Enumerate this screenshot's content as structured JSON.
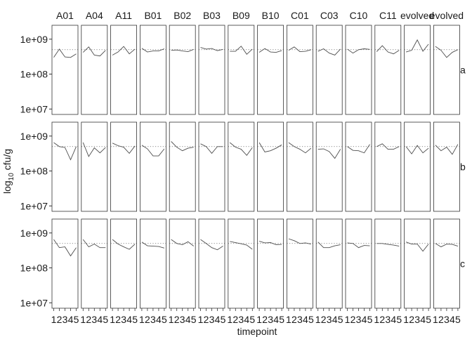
{
  "chart_data": {
    "type": "line",
    "facet_columns": [
      "A01",
      "A04",
      "A11",
      "B01",
      "B02",
      "B03",
      "B09",
      "B10",
      "C01",
      "C03",
      "C10",
      "C11",
      "evolved",
      "evolved"
    ],
    "facet_rows": [
      "a",
      "b",
      "c"
    ],
    "x": [
      1,
      2,
      3,
      4,
      5
    ],
    "xlabel": "timepoint",
    "ylabel_prefix": "log",
    "ylabel_sub": "10",
    "ylabel_suffix": " cfu/g",
    "y_scale": "log10",
    "ylim": [
      7000000,
      2500000000
    ],
    "yticks": [
      10000000,
      100000000,
      1000000000
    ],
    "ytick_labels": [
      "1e+07",
      "1e+08",
      "1e+09"
    ],
    "reference_line": 500000000,
    "reference_style": "dotted",
    "line_color": "#4d4d4d",
    "panel_border_color": "#333333",
    "values": {
      "a": [
        [
          300000000,
          520000000,
          310000000,
          300000000,
          380000000
        ],
        [
          420000000,
          600000000,
          350000000,
          330000000,
          480000000
        ],
        [
          350000000,
          430000000,
          620000000,
          380000000,
          520000000
        ],
        [
          550000000,
          430000000,
          460000000,
          460000000,
          530000000
        ],
        [
          480000000,
          490000000,
          460000000,
          440000000,
          510000000
        ],
        [
          580000000,
          520000000,
          540000000,
          470000000,
          510000000
        ],
        [
          450000000,
          450000000,
          630000000,
          370000000,
          520000000
        ],
        [
          420000000,
          540000000,
          430000000,
          420000000,
          470000000
        ],
        [
          480000000,
          600000000,
          440000000,
          450000000,
          500000000
        ],
        [
          450000000,
          530000000,
          400000000,
          350000000,
          520000000
        ],
        [
          520000000,
          400000000,
          500000000,
          530000000,
          510000000
        ],
        [
          440000000,
          650000000,
          430000000,
          380000000,
          480000000
        ],
        [
          430000000,
          480000000,
          950000000,
          450000000,
          720000000
        ],
        [
          620000000,
          480000000,
          300000000,
          420000000,
          500000000
        ]
      ],
      "b": [
        [
          650000000,
          500000000,
          470000000,
          210000000,
          500000000
        ],
        [
          650000000,
          260000000,
          460000000,
          330000000,
          470000000
        ],
        [
          630000000,
          530000000,
          480000000,
          320000000,
          520000000
        ],
        [
          550000000,
          430000000,
          270000000,
          270000000,
          430000000
        ],
        [
          700000000,
          480000000,
          380000000,
          450000000,
          480000000
        ],
        [
          600000000,
          500000000,
          320000000,
          500000000,
          500000000
        ],
        [
          650000000,
          480000000,
          420000000,
          280000000,
          470000000
        ],
        [
          650000000,
          350000000,
          380000000,
          450000000,
          560000000
        ],
        [
          650000000,
          500000000,
          420000000,
          330000000,
          450000000
        ],
        [
          420000000,
          430000000,
          360000000,
          230000000,
          420000000
        ],
        [
          500000000,
          390000000,
          380000000,
          330000000,
          580000000
        ],
        [
          500000000,
          600000000,
          420000000,
          420000000,
          500000000
        ],
        [
          500000000,
          310000000,
          540000000,
          330000000,
          450000000
        ],
        [
          550000000,
          380000000,
          480000000,
          300000000,
          580000000
        ]
      ],
      "c": [
        [
          650000000,
          380000000,
          400000000,
          220000000,
          380000000
        ],
        [
          650000000,
          400000000,
          480000000,
          380000000,
          380000000
        ],
        [
          650000000,
          480000000,
          400000000,
          340000000,
          480000000
        ],
        [
          550000000,
          430000000,
          420000000,
          410000000,
          370000000
        ],
        [
          650000000,
          500000000,
          460000000,
          560000000,
          420000000
        ],
        [
          650000000,
          500000000,
          380000000,
          330000000,
          420000000
        ],
        [
          570000000,
          530000000,
          490000000,
          450000000,
          340000000
        ],
        [
          580000000,
          520000000,
          530000000,
          460000000,
          470000000
        ],
        [
          680000000,
          600000000,
          500000000,
          520000000,
          480000000
        ],
        [
          550000000,
          380000000,
          380000000,
          430000000,
          460000000
        ],
        [
          520000000,
          500000000,
          380000000,
          440000000,
          430000000
        ],
        [
          500000000,
          500000000,
          470000000,
          450000000,
          420000000
        ],
        [
          550000000,
          480000000,
          480000000,
          300000000,
          480000000
        ],
        [
          500000000,
          400000000,
          480000000,
          470000000,
          420000000
        ]
      ]
    }
  }
}
